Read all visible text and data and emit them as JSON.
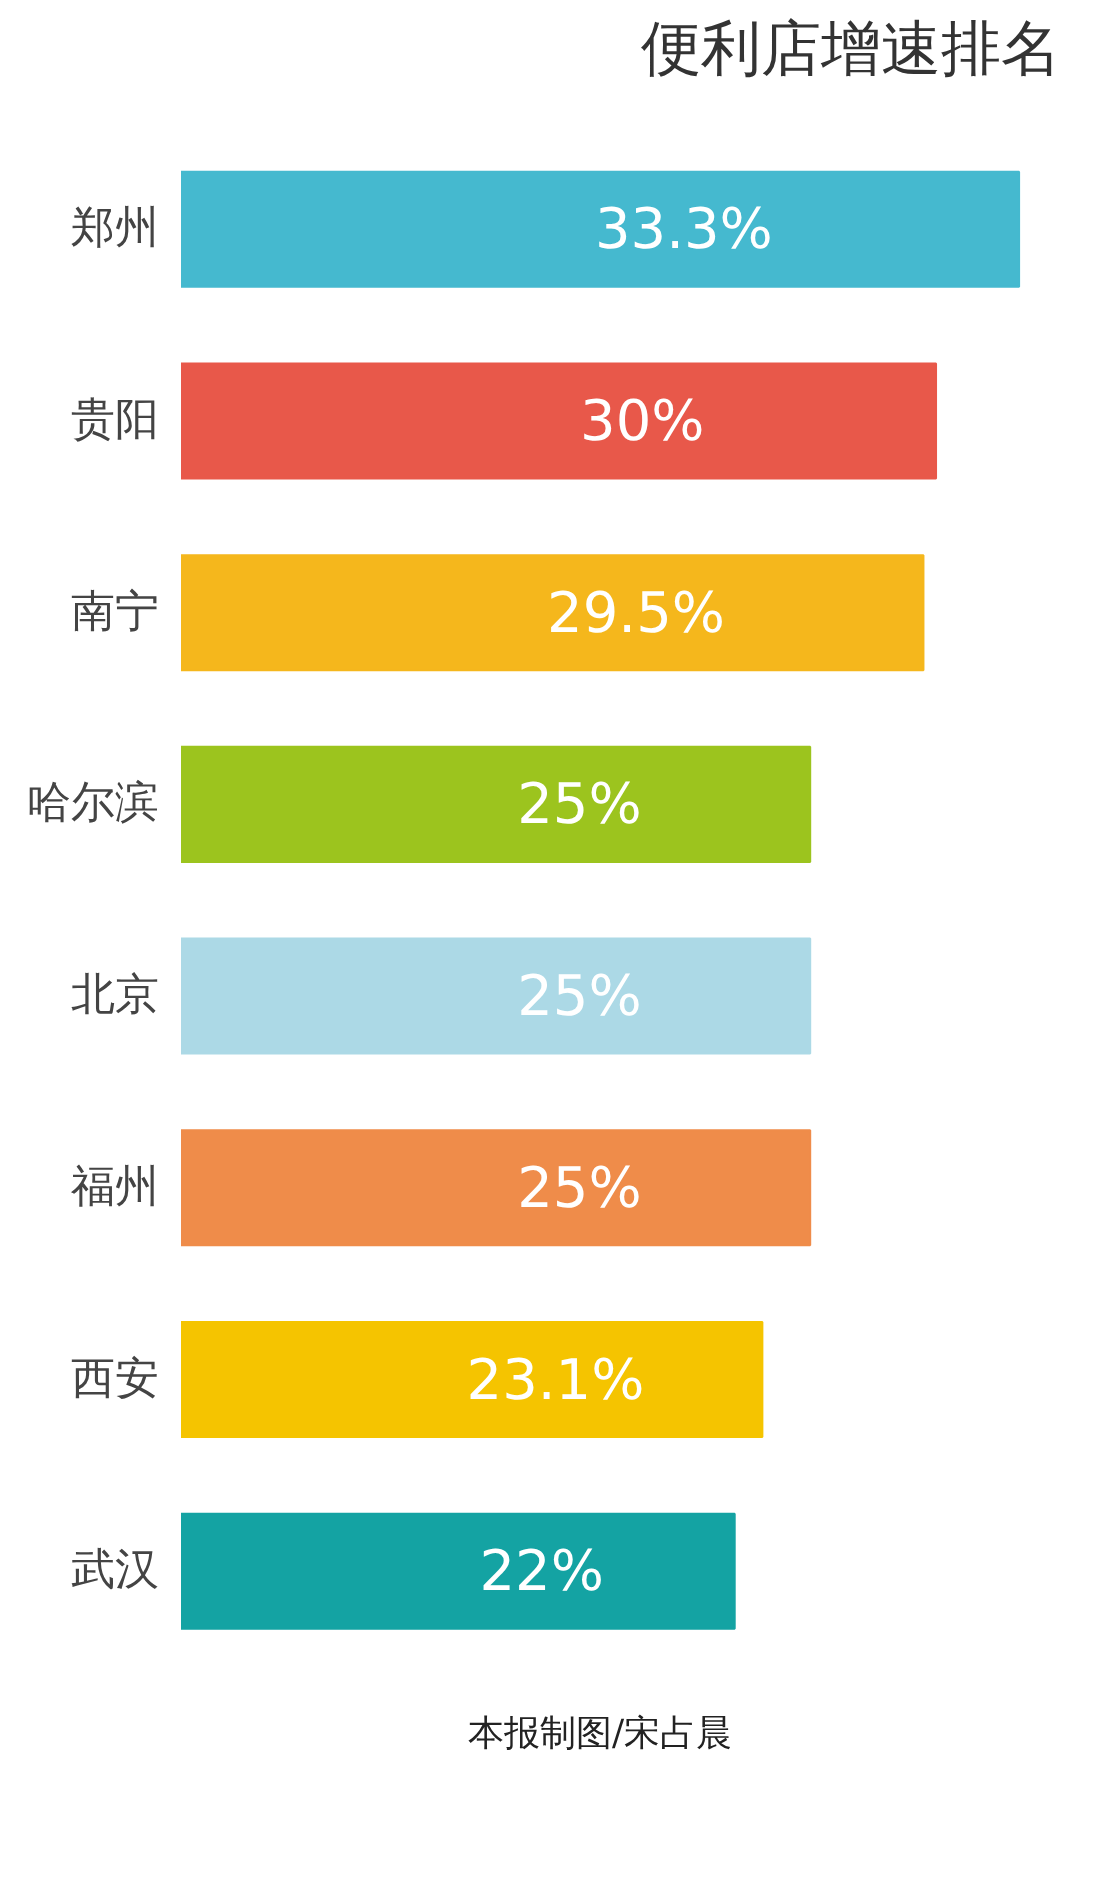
{
  "chart_data": {
    "type": "bar",
    "orientation": "horizontal",
    "title": "便利店增速排名",
    "categories": [
      "郑州",
      "贵阳",
      "南宁",
      "哈尔滨",
      "北京",
      "福州",
      "西安",
      "武汉"
    ],
    "values": [
      33.3,
      30,
      29.5,
      25,
      25,
      25,
      23.1,
      22
    ],
    "value_labels": [
      "33.3%",
      "30%",
      "29.5%",
      "25%",
      "25%",
      "25%",
      "23.1%",
      "22%"
    ],
    "colors": [
      "#45b9cf",
      "#e8584a",
      "#f5b71c",
      "#9cc41e",
      "#acd9e6",
      "#ef8c4a",
      "#f5c400",
      "#14a3a3"
    ],
    "annotations": [
      "本报制图/宋占晨"
    ],
    "grid": false
  }
}
